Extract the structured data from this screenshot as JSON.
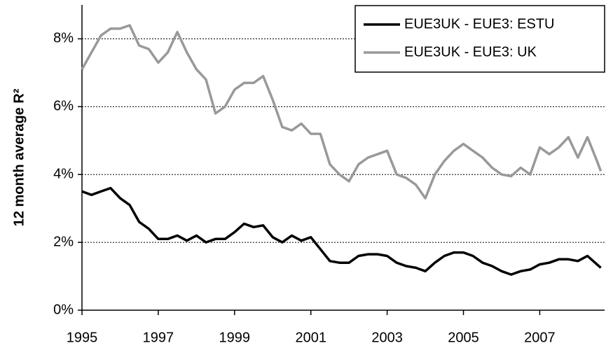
{
  "chart_data": {
    "type": "line",
    "y_label": "12 month average R²",
    "x": [
      1995,
      1995.25,
      1995.5,
      1995.75,
      1996,
      1996.25,
      1996.5,
      1996.75,
      1997,
      1997.25,
      1997.5,
      1997.75,
      1998,
      1998.25,
      1998.5,
      1998.75,
      1999,
      1999.25,
      1999.5,
      1999.75,
      2000,
      2000.25,
      2000.5,
      2000.75,
      2001,
      2001.25,
      2001.5,
      2001.75,
      2002,
      2002.25,
      2002.5,
      2002.75,
      2003,
      2003.25,
      2003.5,
      2003.75,
      2004,
      2004.25,
      2004.5,
      2004.75,
      2005,
      2005.25,
      2005.5,
      2005.75,
      2006,
      2006.25,
      2006.5,
      2006.75,
      2007,
      2007.25,
      2007.5,
      2007.75,
      2008,
      2008.25,
      2008.5,
      2008.6
    ],
    "series": [
      {
        "name": "EUE3UK - EUE3: ESTU",
        "color": "#000000",
        "values": [
          3.5,
          3.4,
          3.5,
          3.6,
          3.3,
          3.1,
          2.6,
          2.4,
          2.1,
          2.1,
          2.2,
          2.05,
          2.2,
          2.0,
          2.1,
          2.1,
          2.3,
          2.55,
          2.45,
          2.5,
          2.15,
          2.0,
          2.2,
          2.05,
          2.15,
          1.8,
          1.45,
          1.4,
          1.4,
          1.6,
          1.65,
          1.65,
          1.6,
          1.4,
          1.3,
          1.25,
          1.15,
          1.4,
          1.6,
          1.7,
          1.7,
          1.6,
          1.4,
          1.3,
          1.15,
          1.05,
          1.15,
          1.2,
          1.35,
          1.4,
          1.5,
          1.5,
          1.45,
          1.6,
          1.35,
          1.25
        ]
      },
      {
        "name": "EUE3UK - EUE3: UK",
        "color": "#999999",
        "values": [
          7.1,
          7.6,
          8.1,
          8.3,
          8.3,
          8.4,
          7.8,
          7.7,
          7.3,
          7.6,
          8.2,
          7.6,
          7.1,
          6.8,
          5.8,
          6.0,
          6.5,
          6.7,
          6.7,
          6.9,
          6.2,
          5.4,
          5.3,
          5.5,
          5.2,
          5.2,
          4.3,
          4.0,
          3.8,
          4.3,
          4.5,
          4.6,
          4.7,
          4.0,
          3.9,
          3.7,
          3.3,
          4.0,
          4.4,
          4.7,
          4.9,
          4.7,
          4.5,
          4.2,
          4.0,
          3.95,
          4.2,
          4.0,
          4.8,
          4.6,
          4.8,
          5.1,
          4.5,
          5.1,
          4.4,
          4.1
        ]
      }
    ],
    "xlim": [
      1995,
      2008.7
    ],
    "xticks": [
      1995,
      1997,
      1999,
      2001,
      2003,
      2005,
      2007
    ],
    "ylim": [
      0,
      9
    ],
    "yticks": [
      {
        "value": 0,
        "label": "0%"
      },
      {
        "value": 2,
        "label": "2%"
      },
      {
        "value": 4,
        "label": "4%"
      },
      {
        "value": 6,
        "label": "6%"
      },
      {
        "value": 8,
        "label": "8%"
      }
    ],
    "grid": true,
    "legend": "upper right"
  }
}
